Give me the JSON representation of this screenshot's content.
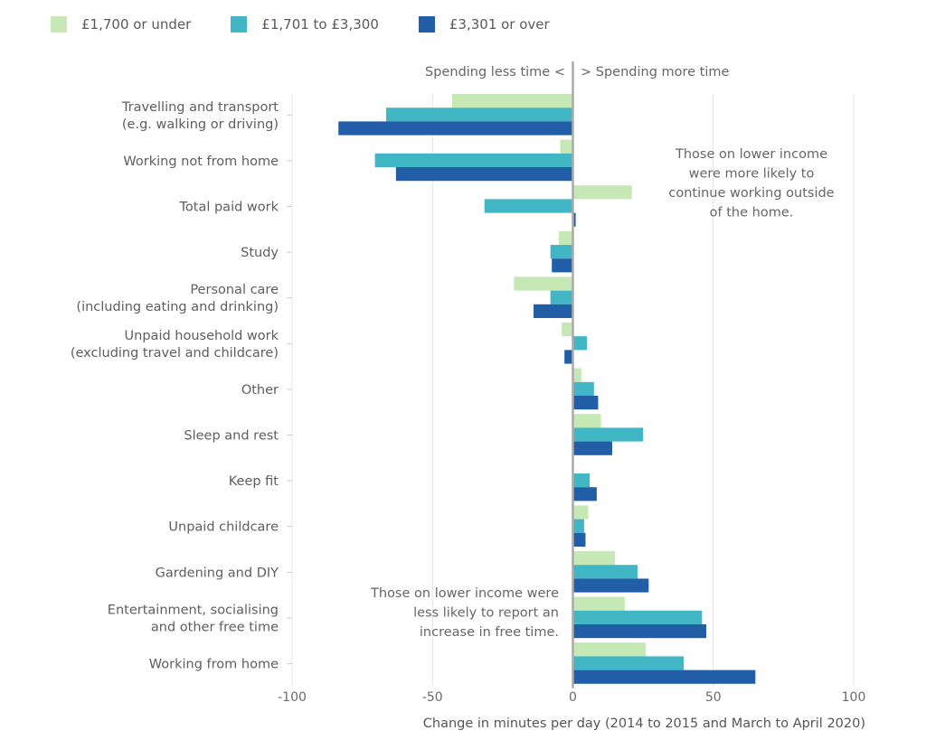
{
  "chart_data": {
    "type": "bar",
    "orientation": "horizontal",
    "title": "",
    "xlabel": "Change in minutes per day (2014 to 2015 and March to April 2020)",
    "ylabel": "",
    "xlim": [
      -100,
      100
    ],
    "xticks": [
      -100,
      -50,
      0,
      50,
      100
    ],
    "xtick_labels": [
      "-100",
      "-50",
      "0",
      "50",
      "100"
    ],
    "grid": true,
    "legend_position": "top-left",
    "direction_labels": {
      "left": "Spending less time <",
      "right": "> Spending more time"
    },
    "categories": [
      [
        "Travelling and transport",
        "(e.g. walking or driving)"
      ],
      [
        "Working not from home"
      ],
      [
        "Total paid work"
      ],
      [
        "Study"
      ],
      [
        "Personal care",
        "(including eating and drinking)"
      ],
      [
        "Unpaid household work",
        "(excluding travel and childcare)"
      ],
      [
        "Other"
      ],
      [
        "Sleep and rest"
      ],
      [
        "Keep fit"
      ],
      [
        "Unpaid childcare"
      ],
      [
        "Gardening and DIY"
      ],
      [
        "Entertainment, socialising",
        "and other free time"
      ],
      [
        "Working from home"
      ]
    ],
    "series": [
      {
        "name": "£1,700 or under",
        "color": "#c6e8b4",
        "values": [
          -43,
          -4.5,
          21,
          -5,
          -21,
          -4,
          3,
          10,
          0,
          5.5,
          15,
          18.5,
          26
        ]
      },
      {
        "name": "£1,701 to £3,300",
        "color": "#41b6c4",
        "values": [
          -66.5,
          -70.5,
          -31.5,
          -8,
          -8,
          5,
          7.5,
          25,
          6,
          4,
          23,
          46,
          39.5
        ]
      },
      {
        "name": "£3,301 or over",
        "color": "#225ea8",
        "values": [
          -83.5,
          -63,
          1,
          -7.5,
          -14,
          -3,
          9,
          14,
          8.5,
          4.5,
          27,
          47.5,
          65
        ]
      }
    ],
    "annotations": [
      {
        "lines": [
          "Those on lower income",
          "were more likely to",
          "continue working outside",
          "of the home."
        ]
      },
      {
        "lines": [
          "Those on lower income were",
          "less likely to report an",
          "increase in free time."
        ]
      }
    ]
  }
}
